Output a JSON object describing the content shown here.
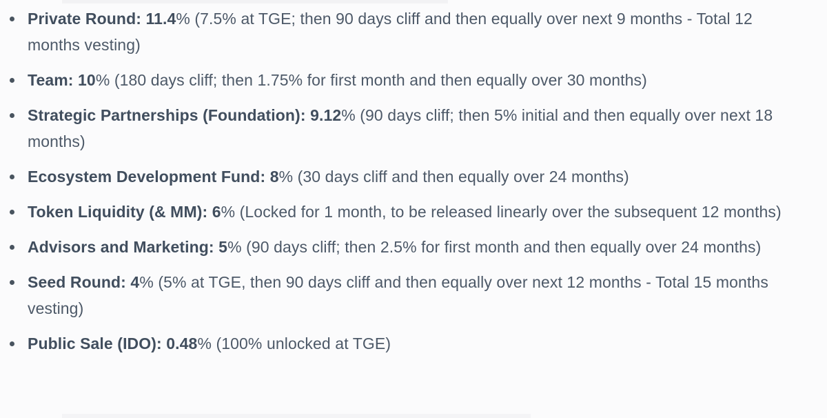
{
  "page": {
    "background": "#fbfbfc",
    "text_color": "#4d5968",
    "bold_color": "#414e5e",
    "bullet_color": "#49545f"
  },
  "allocation_list": {
    "items": [
      {
        "bold": "Private Round: 11.4",
        "rest": "% (7.5% at TGE; then 90 days cliff and then equally over next 9 months - Total 12 months vesting)"
      },
      {
        "bold": "Team: 10",
        "rest": "% (180 days cliff; then 1.75% for first month and then equally over 30 months)"
      },
      {
        "bold": "Strategic Partnerships (Foundation): 9.12",
        "rest": "% (90 days cliff; then 5% initial and then equally over next 18 months)"
      },
      {
        "bold": "Ecosystem Development Fund: 8",
        "rest": "% (30 days cliff and then equally over 24 months)"
      },
      {
        "bold": "Token Liquidity (& MM): 6",
        "rest": "% (Locked for 1 month, to be released linearly over the subsequent 12 months)"
      },
      {
        "bold": "Advisors and Marketing: 5",
        "rest": "% (90 days cliff; then 2.5% for first month and then equally over 24 months)"
      },
      {
        "bold": "Seed Round: 4",
        "rest": "% (5% at TGE, then 90 days cliff and then equally over next 12 months - Total 15 months vesting)"
      },
      {
        "bold": "Public Sale (IDO): 0.48",
        "rest": "% (100% unlocked at TGE)"
      }
    ]
  }
}
